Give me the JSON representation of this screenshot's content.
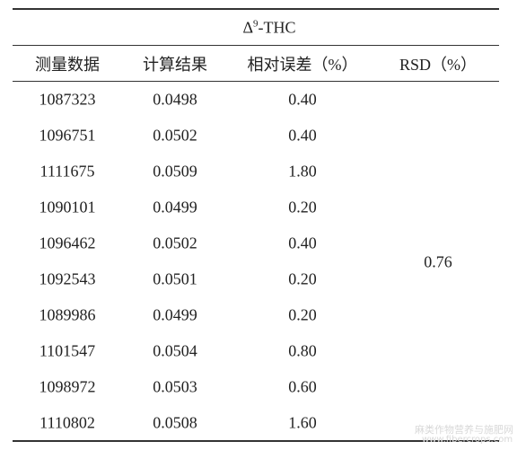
{
  "table": {
    "title": {
      "symbol": "Δ",
      "sup": "9",
      "rest": "-THC"
    },
    "headers": [
      "测量数据",
      "计算结果",
      "相对误差（%）",
      "RSD（%）"
    ],
    "rows": [
      [
        "1087323",
        "0.0498",
        "0.40"
      ],
      [
        "1096751",
        "0.0502",
        "0.40"
      ],
      [
        "1111675",
        "0.0509",
        "1.80"
      ],
      [
        "1090101",
        "0.0499",
        "0.20"
      ],
      [
        "1096462",
        "0.0502",
        "0.40"
      ],
      [
        "1092543",
        "0.0501",
        "0.20"
      ],
      [
        "1089986",
        "0.0499",
        "0.20"
      ],
      [
        "1101547",
        "0.0504",
        "0.80"
      ],
      [
        "1098972",
        "0.0503",
        "0.60"
      ],
      [
        "1110802",
        "0.0508",
        "1.60"
      ]
    ],
    "rsd": "0.76"
  },
  "watermark": {
    "name": "麻类作物营养与施肥网",
    "url": "www.fibercrops.com"
  }
}
